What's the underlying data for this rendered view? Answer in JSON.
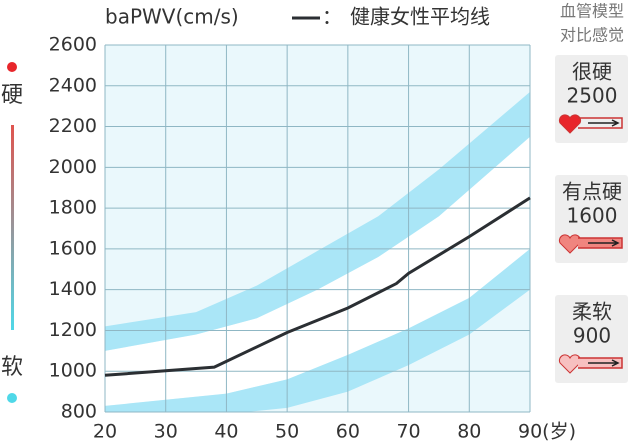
{
  "chart_data": {
    "type": "line",
    "y_label": "baPWV(cm/s)",
    "legend_separator": "：",
    "xlim": [
      20,
      90
    ],
    "ylim": [
      800,
      2600
    ],
    "xticks": [
      20,
      30,
      40,
      50,
      60,
      70,
      80,
      {
        "value": 90,
        "label": "90(岁)"
      }
    ],
    "yticks": [
      800,
      1000,
      1200,
      1400,
      1600,
      1800,
      2000,
      2200,
      2400,
      2600
    ],
    "grid": true,
    "series": [
      {
        "name": "健康女性平均线",
        "color": "#2b2f33",
        "x": [
          20,
          38,
          50,
          60,
          68,
          70,
          80,
          90
        ],
        "values": [
          980,
          1020,
          1190,
          1310,
          1430,
          1480,
          1660,
          1850
        ]
      }
    ],
    "bands": [
      {
        "color": "#aae6f7",
        "x": [
          20,
          35,
          45,
          55,
          65,
          75,
          90
        ],
        "lower": [
          1100,
          1180,
          1260,
          1400,
          1560,
          1760,
          2150
        ],
        "upper": [
          1220,
          1290,
          1420,
          1590,
          1760,
          1990,
          2370
        ]
      },
      {
        "color": "#aae6f7",
        "x": [
          20,
          40,
          50,
          60,
          70,
          80,
          90
        ],
        "lower": [
          790,
          790,
          820,
          900,
          1030,
          1180,
          1400
        ],
        "upper": [
          830,
          890,
          960,
          1080,
          1210,
          1360,
          1600
        ]
      }
    ],
    "side_panel": {
      "title_lines": [
        "血管模型",
        "对比感觉"
      ],
      "cards": [
        {
          "label": "很硬",
          "value": 2500
        },
        {
          "label": "有点硬",
          "value": 1600
        },
        {
          "label": "柔软",
          "value": 900
        }
      ]
    },
    "scale": {
      "hard": "硬",
      "soft": "软"
    }
  }
}
